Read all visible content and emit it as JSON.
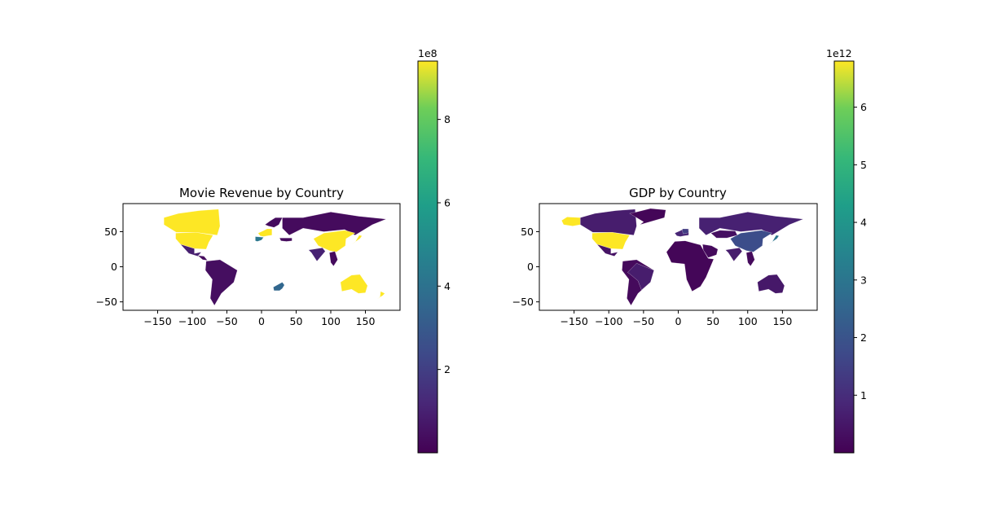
{
  "maps": [
    {
      "id": "revenue",
      "title": "Movie Revenue by Country",
      "xlim": [
        -200,
        200
      ],
      "ylim": [
        -62,
        90
      ],
      "x_ticks": [
        -150,
        -100,
        -50,
        0,
        50,
        100,
        150
      ],
      "y_ticks": [
        -50,
        0,
        50
      ],
      "x_tick_labels": [
        "−150",
        "−100",
        "−50",
        "0",
        "50",
        "100",
        "150"
      ],
      "y_tick_labels": [
        "−50",
        "0",
        "50"
      ],
      "colorbar": {
        "range": [
          0,
          9.4
        ],
        "ticks": [
          2,
          4,
          6,
          8
        ],
        "tick_labels": [
          "2",
          "4",
          "6",
          "8"
        ],
        "offset_label": "1e8"
      },
      "regions": [
        {
          "name": "Canada",
          "value": 9.4
        },
        {
          "name": "United States",
          "value": 9.4
        },
        {
          "name": "Mexico",
          "value": 0.9
        },
        {
          "name": "Central America",
          "value": 0.3
        },
        {
          "name": "South America",
          "value": 0.4
        },
        {
          "name": "Western Europe",
          "value": 9.4
        },
        {
          "name": "Iberia",
          "value": 4.2
        },
        {
          "name": "Scandinavia",
          "value": 0.3
        },
        {
          "name": "Russia",
          "value": 0.3
        },
        {
          "name": "China",
          "value": 9.4
        },
        {
          "name": "Japan",
          "value": 9.4
        },
        {
          "name": "India",
          "value": 1.0
        },
        {
          "name": "South Africa",
          "value": 3.5
        },
        {
          "name": "Australia",
          "value": 9.4
        },
        {
          "name": "New Zealand",
          "value": 9.4
        },
        {
          "name": "Southeast Asia",
          "value": 0.3
        },
        {
          "name": "Turkey",
          "value": 0.3
        }
      ]
    },
    {
      "id": "gdp",
      "title": "GDP by Country",
      "xlim": [
        -200,
        200
      ],
      "ylim": [
        -62,
        90
      ],
      "x_ticks": [
        -150,
        -100,
        -50,
        0,
        50,
        100,
        150
      ],
      "y_ticks": [
        -50,
        0,
        50
      ],
      "x_tick_labels": [
        "−150",
        "−100",
        "−50",
        "0",
        "50",
        "100",
        "150"
      ],
      "y_tick_labels": [
        "−50",
        "0",
        "50"
      ],
      "colorbar": {
        "range": [
          0,
          6.8
        ],
        "ticks": [
          1,
          2,
          3,
          4,
          5,
          6
        ],
        "tick_labels": [
          "1",
          "2",
          "3",
          "4",
          "5",
          "6"
        ],
        "offset_label": "1e12"
      },
      "regions": [
        {
          "name": "Alaska",
          "value": 6.8
        },
        {
          "name": "Canada",
          "value": 0.6
        },
        {
          "name": "United States",
          "value": 6.8
        },
        {
          "name": "Mexico",
          "value": 0.4
        },
        {
          "name": "Greenland",
          "value": 0.1
        },
        {
          "name": "South America",
          "value": 0.2
        },
        {
          "name": "Brazil",
          "value": 0.6
        },
        {
          "name": "Western Europe",
          "value": 0.8
        },
        {
          "name": "Germany",
          "value": 1.4
        },
        {
          "name": "Russia",
          "value": 0.7
        },
        {
          "name": "China",
          "value": 1.8
        },
        {
          "name": "Japan",
          "value": 3.0
        },
        {
          "name": "India",
          "value": 0.6
        },
        {
          "name": "Africa",
          "value": 0.1
        },
        {
          "name": "Middle East",
          "value": 0.2
        },
        {
          "name": "Australia",
          "value": 0.5
        },
        {
          "name": "Southeast Asia",
          "value": 0.2
        },
        {
          "name": "Kazakhstan",
          "value": 0.3
        }
      ]
    }
  ]
}
